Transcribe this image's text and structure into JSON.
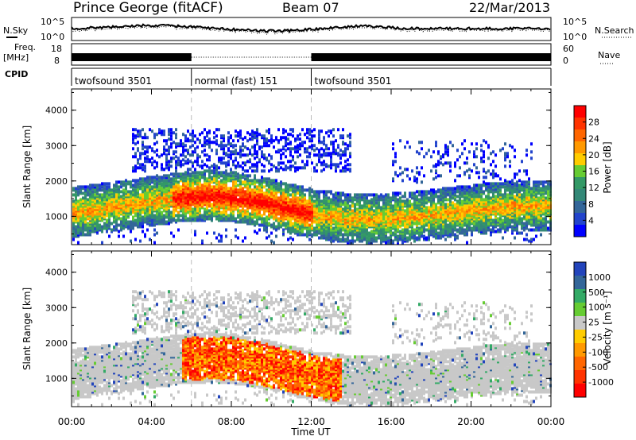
{
  "header": {
    "station": "Prince George (fitACF)",
    "beam": "Beam 07",
    "date": "22/Mar/2013"
  },
  "noise_panel": {
    "left_label": "N.Sky",
    "right_label": "N.Search",
    "left_ticks": [
      "10^5",
      "10^0"
    ],
    "right_ticks": [
      "10^5",
      "10^0"
    ]
  },
  "freq_panel": {
    "left_label_line1": "Freq.",
    "left_label_line2": "[MHz]",
    "right_label": "Nave",
    "left_ticks": [
      "18",
      "8"
    ],
    "right_ticks": [
      "60",
      "0"
    ]
  },
  "cpid_panel": {
    "label": "CPID",
    "segments": [
      {
        "label": "twofsound 3501",
        "start_hour": 0,
        "end_hour": 6
      },
      {
        "label": "normal (fast) 151",
        "start_hour": 6,
        "end_hour": 12
      },
      {
        "label": "twofsound 3501",
        "start_hour": 12,
        "end_hour": 24
      }
    ]
  },
  "power_panel": {
    "ylabel": "Slant Range [km]",
    "colorbar_label": "Power [dB]",
    "colorbar_ticks": [
      "28",
      "24",
      "20",
      "16",
      "12",
      "8",
      "4"
    ],
    "colorbar_colors": [
      "#ff0000",
      "#ff3300",
      "#ff6600",
      "#ff9900",
      "#ffcc00",
      "#66cc33",
      "#339966",
      "#338877",
      "#336699",
      "#2244cc",
      "#0000ff"
    ]
  },
  "velocity_panel": {
    "ylabel": "Slant Range [km]",
    "colorbar_label": "Velocity [m s⁻¹]",
    "colorbar_ticks": [
      "1000",
      "500",
      "100",
      "25",
      "-25",
      "-100",
      "-500",
      "-1000"
    ],
    "colorbar_colors": [
      "#2244bb",
      "#336699",
      "#33aa66",
      "#66cc33",
      "#c8c8c8",
      "#ffcc00",
      "#ff9900",
      "#ff6600",
      "#ff3300",
      "#ff0000"
    ]
  },
  "chart_data": {
    "type": "heatmap",
    "title": "Prince George (fitACF)  Beam 07  22/Mar/2013",
    "xlabel": "Time UT",
    "ylabel": "Slant Range [km]",
    "x_tick_labels": [
      "00:00",
      "04:00",
      "08:00",
      "12:00",
      "16:00",
      "20:00",
      "00:00"
    ],
    "xlim_hours": [
      0,
      24
    ],
    "y_tick_labels": [
      "1000",
      "2000",
      "3000",
      "4000"
    ],
    "ylim_km": [
      200,
      4600
    ],
    "dashed_time_markers_hours": [
      6,
      12
    ]
  }
}
